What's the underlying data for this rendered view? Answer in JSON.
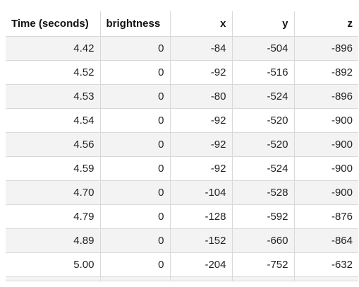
{
  "table": {
    "columns": [
      "Time (seconds)",
      "brightness",
      "x",
      "y",
      "z"
    ],
    "rows": [
      [
        "4.42",
        "0",
        "-84",
        "-504",
        "-896"
      ],
      [
        "4.52",
        "0",
        "-92",
        "-516",
        "-892"
      ],
      [
        "4.53",
        "0",
        "-80",
        "-524",
        "-896"
      ],
      [
        "4.54",
        "0",
        "-92",
        "-520",
        "-900"
      ],
      [
        "4.56",
        "0",
        "-92",
        "-520",
        "-900"
      ],
      [
        "4.59",
        "0",
        "-92",
        "-524",
        "-900"
      ],
      [
        "4.70",
        "0",
        "-104",
        "-528",
        "-900"
      ],
      [
        "4.79",
        "0",
        "-128",
        "-592",
        "-876"
      ],
      [
        "4.89",
        "0",
        "-152",
        "-660",
        "-864"
      ],
      [
        "5.00",
        "0",
        "-204",
        "-752",
        "-632"
      ]
    ]
  }
}
